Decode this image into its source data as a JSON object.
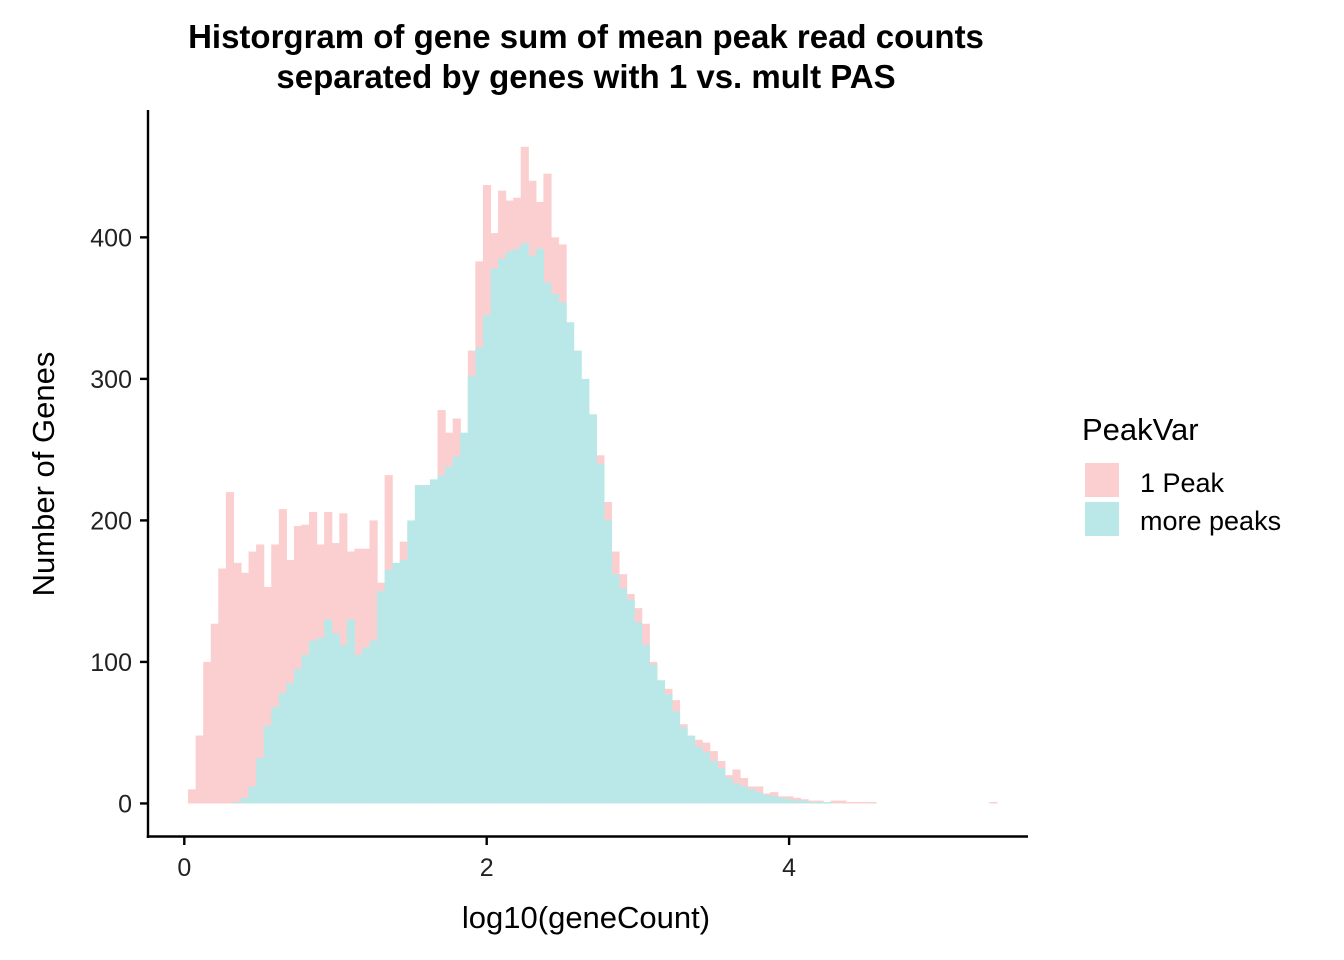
{
  "chart_data": {
    "type": "bar",
    "title_lines": [
      "Historgram of gene sum of mean peak read counts",
      "separated by genes with 1 vs. mult PAS"
    ],
    "xlabel": "log10(geneCount)",
    "ylabel": "Number of Genes",
    "xlim": [
      -0.24,
      5.58
    ],
    "ylim": [
      -23,
      490
    ],
    "x_ticks": [
      0,
      2,
      4
    ],
    "x_tick_labels": [
      "0",
      "2",
      "4"
    ],
    "y_ticks": [
      0,
      100,
      200,
      300,
      400
    ],
    "y_tick_labels": [
      "0",
      "100",
      "200",
      "300",
      "400"
    ],
    "bin_width": 0.05,
    "bin_start": 0.025,
    "legend": {
      "title": "PeakVar",
      "position": "right"
    },
    "series": [
      {
        "name": "1 Peak",
        "color": "#fbcfcf",
        "values": [
          10,
          48,
          100,
          127,
          166,
          220,
          170,
          163,
          178,
          183,
          153,
          183,
          208,
          172,
          196,
          197,
          206,
          183,
          206,
          184,
          205,
          178,
          180,
          180,
          200,
          156,
          232,
          166,
          185,
          198,
          206,
          223,
          210,
          278,
          262,
          272,
          252,
          320,
          383,
          437,
          403,
          433,
          426,
          428,
          464,
          440,
          425,
          445,
          400,
          395,
          315,
          300,
          280,
          273,
          246,
          213,
          178,
          162,
          148,
          138,
          127,
          100,
          87,
          81,
          73,
          56,
          43,
          45,
          43,
          37,
          30,
          20,
          24,
          18,
          12,
          12,
          7,
          8,
          5,
          5,
          4,
          3,
          2,
          2,
          1,
          2,
          2,
          1,
          1,
          1,
          1,
          0,
          0,
          0,
          0,
          0,
          0,
          0,
          0,
          0,
          0,
          0,
          0,
          0,
          0,
          0,
          1
        ]
      },
      {
        "name": "more peaks",
        "color": "#bae8e8",
        "values": [
          0,
          0,
          0,
          0,
          0,
          0,
          1,
          4,
          12,
          32,
          55,
          68,
          78,
          85,
          95,
          105,
          115,
          117,
          130,
          120,
          112,
          130,
          105,
          110,
          115,
          150,
          165,
          170,
          172,
          200,
          225,
          225,
          229,
          232,
          238,
          245,
          262,
          302,
          322,
          345,
          378,
          385,
          390,
          392,
          396,
          387,
          392,
          368,
          360,
          354,
          340,
          320,
          300,
          275,
          240,
          200,
          162,
          152,
          144,
          128,
          112,
          98,
          87,
          77,
          65,
          54,
          48,
          40,
          36,
          30,
          25,
          18,
          14,
          12,
          10,
          8,
          6,
          5,
          4,
          3,
          2,
          2,
          1,
          1,
          1,
          0,
          0,
          0,
          0,
          0,
          0,
          0,
          0,
          0,
          0,
          0,
          0,
          0,
          0,
          0,
          0,
          0,
          0,
          0,
          0,
          0,
          0
        ]
      }
    ]
  }
}
